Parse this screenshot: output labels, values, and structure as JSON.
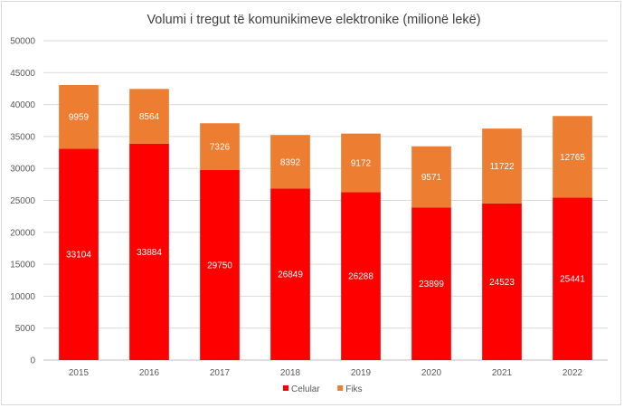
{
  "chart_data": {
    "type": "bar",
    "stacked": true,
    "title": "Volumi i tregut të komunikimeve elektronike (milionë lekë)",
    "categories": [
      "2015",
      "2016",
      "2017",
      "2018",
      "2019",
      "2020",
      "2021",
      "2022"
    ],
    "series": [
      {
        "name": "Celular",
        "color": "#ff0000",
        "values": [
          33104,
          33884,
          29750,
          26849,
          26288,
          23899,
          24523,
          25441
        ]
      },
      {
        "name": "Fiks",
        "color": "#ed7d31",
        "values": [
          9959,
          8564,
          7326,
          8392,
          9172,
          9571,
          11722,
          12765
        ]
      }
    ],
    "ylim": [
      0,
      50000
    ],
    "yticks": [
      0,
      5000,
      10000,
      15000,
      20000,
      25000,
      30000,
      35000,
      40000,
      45000,
      50000
    ],
    "grid": true,
    "legend": "bottom-center",
    "data_labels": true
  }
}
